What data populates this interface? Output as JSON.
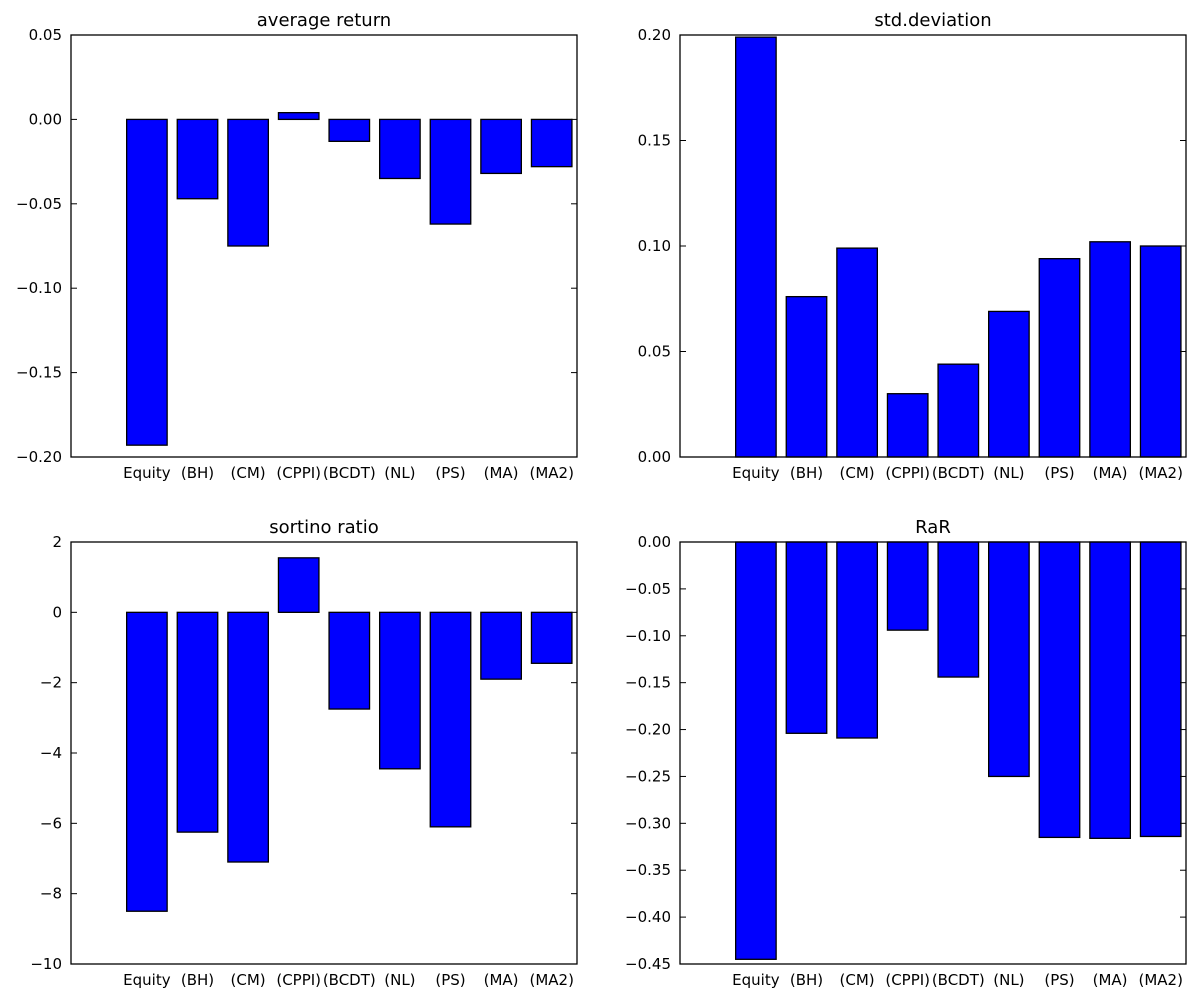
{
  "colors": {
    "bar": "#0000ff",
    "edge": "#000000",
    "background": "#ffffff"
  },
  "chart_data": [
    {
      "type": "bar",
      "title": "average return",
      "categories": [
        "Equity",
        "(BH)",
        "(CM)",
        "(CPPI)",
        "(BCDT)",
        "(NL)",
        "(PS)",
        "(MA)",
        "(MA2)"
      ],
      "values": [
        -0.193,
        -0.047,
        -0.075,
        0.004,
        -0.013,
        -0.035,
        -0.062,
        -0.032,
        -0.028
      ],
      "ylim": [
        -0.2,
        0.05
      ],
      "yticks": [
        0.05,
        0.0,
        -0.05,
        -0.1,
        -0.15,
        -0.2
      ],
      "ytick_labels": [
        "0.05",
        "0.00",
        "−0.05",
        "−0.10",
        "−0.15",
        "−0.20"
      ],
      "xlabel": "",
      "ylabel": "",
      "grid": false
    },
    {
      "type": "bar",
      "title": "std.deviation",
      "categories": [
        "Equity",
        "(BH)",
        "(CM)",
        "(CPPI)",
        "(BCDT)",
        "(NL)",
        "(PS)",
        "(MA)",
        "(MA2)"
      ],
      "values": [
        0.199,
        0.076,
        0.099,
        0.03,
        0.044,
        0.069,
        0.094,
        0.102,
        0.1
      ],
      "ylim": [
        0.0,
        0.2
      ],
      "yticks": [
        0.2,
        0.15,
        0.1,
        0.05,
        0.0
      ],
      "ytick_labels": [
        "0.20",
        "0.15",
        "0.10",
        "0.05",
        "0.00"
      ],
      "xlabel": "",
      "ylabel": "",
      "grid": false
    },
    {
      "type": "bar",
      "title": "sortino ratio",
      "categories": [
        "Equity",
        "(BH)",
        "(CM)",
        "(CPPI)",
        "(BCDT)",
        "(NL)",
        "(PS)",
        "(MA)",
        "(MA2)"
      ],
      "values": [
        -8.5,
        -6.25,
        -7.1,
        1.55,
        -2.75,
        -4.45,
        -6.1,
        -1.9,
        -1.45
      ],
      "ylim": [
        -10,
        2
      ],
      "yticks": [
        2,
        0,
        -2,
        -4,
        -6,
        -8,
        -10
      ],
      "ytick_labels": [
        "2",
        "0",
        "−2",
        "−4",
        "−6",
        "−8",
        "−10"
      ],
      "xlabel": "",
      "ylabel": "",
      "grid": false
    },
    {
      "type": "bar",
      "title": "RaR",
      "categories": [
        "Equity",
        "(BH)",
        "(CM)",
        "(CPPI)",
        "(BCDT)",
        "(NL)",
        "(PS)",
        "(MA)",
        "(MA2)"
      ],
      "values": [
        -0.445,
        -0.204,
        -0.209,
        -0.094,
        -0.144,
        -0.25,
        -0.315,
        -0.316,
        -0.314
      ],
      "ylim": [
        -0.45,
        0.0
      ],
      "yticks": [
        0.0,
        -0.05,
        -0.1,
        -0.15,
        -0.2,
        -0.25,
        -0.3,
        -0.35,
        -0.4,
        -0.45
      ],
      "ytick_labels": [
        "0.00",
        "−0.05",
        "−0.10",
        "−0.15",
        "−0.20",
        "−0.25",
        "−0.30",
        "−0.35",
        "−0.40",
        "−0.45"
      ],
      "xlabel": "",
      "ylabel": "",
      "grid": false
    }
  ]
}
